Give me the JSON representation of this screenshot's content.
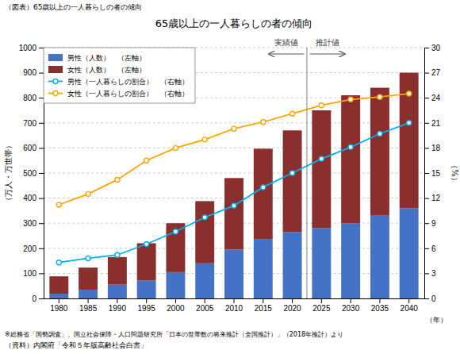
{
  "chart_data": {
    "type": "bar",
    "stacked": true,
    "title": "65歳以上の一人暮らしの者の傾向",
    "ylabel": "（万人・万世帯）",
    "y2label": "（%）",
    "xlabel": "（年）",
    "annotations": [
      "（図表）65歳以上の一人暮らしの者の傾向",
      "実績値",
      "推計値",
      "※総務省「国勢調査」、国立社会保障・人口問題研究所「日本の世帯数の将来推計（全国推計）」（2018年推計）より",
      "（資料）内閣府「令和５年版高齢社会白書」"
    ],
    "categories": [
      "1980",
      "1985",
      "1990",
      "1995",
      "2000",
      "2005",
      "2010",
      "2015",
      "2020",
      "2025",
      "2030",
      "2035",
      "2040"
    ],
    "series": [
      {
        "name": "男性（人数）　（左軸）",
        "type": "bar",
        "color": "#4472c4",
        "values": [
          19,
          35,
          55,
          72,
          105,
          140,
          195,
          237,
          265,
          280,
          300,
          330,
          360
        ]
      },
      {
        "name": "女性（人数）　（左軸）",
        "type": "bar",
        "color": "#8b2e2e",
        "values": [
          69,
          88,
          110,
          148,
          195,
          248,
          285,
          360,
          405,
          470,
          510,
          510,
          540
        ]
      },
      {
        "name": "男性（一人暮らしの割合）　（右軸）",
        "type": "line",
        "axis": "y2",
        "marker": "circle",
        "color": "#00b0f0",
        "values": [
          4.3,
          4.8,
          5.2,
          6.5,
          8.0,
          9.7,
          11.1,
          13.3,
          15.0,
          16.7,
          18.1,
          19.7,
          21.0
        ]
      },
      {
        "name": "女性（一人暮らしの割合）　（右軸）",
        "type": "line",
        "axis": "y2",
        "marker": "circle",
        "color": "#ffa500",
        "values": [
          11.2,
          12.5,
          14.2,
          16.5,
          18.0,
          19.0,
          20.3,
          21.1,
          22.1,
          23.1,
          23.8,
          24.1,
          24.5
        ]
      }
    ],
    "ylim": [
      0,
      1000
    ],
    "yticks": [
      0,
      100,
      200,
      300,
      400,
      500,
      600,
      700,
      800,
      900,
      1000
    ],
    "y2lim": [
      0,
      30
    ],
    "y2ticks": [
      0,
      3,
      6,
      9,
      12,
      15,
      18,
      21,
      24,
      27,
      30
    ],
    "grid": true,
    "legend": "upper left"
  }
}
